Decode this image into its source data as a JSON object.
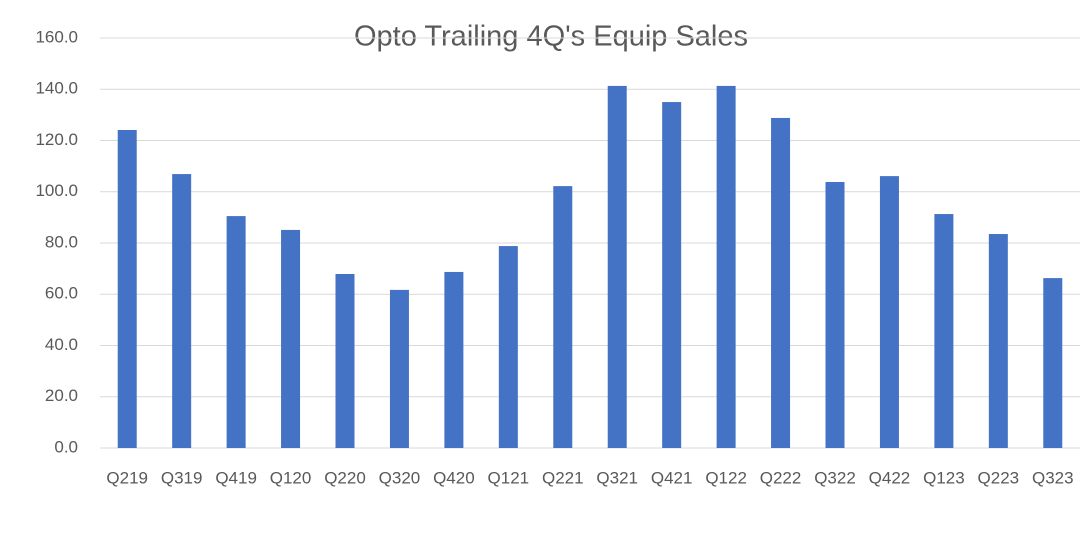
{
  "chart_data": {
    "type": "bar",
    "title": "Opto Trailing 4Q's Equip Sales",
    "categories": [
      "Q219",
      "Q319",
      "Q419",
      "Q120",
      "Q220",
      "Q320",
      "Q420",
      "Q121",
      "Q221",
      "Q321",
      "Q421",
      "Q122",
      "Q222",
      "Q322",
      "Q422",
      "Q123",
      "Q223",
      "Q323"
    ],
    "values": [
      124.1,
      106.9,
      90.5,
      85.1,
      67.9,
      61.7,
      68.7,
      78.8,
      102.2,
      141.3,
      135.0,
      141.3,
      128.8,
      103.8,
      106.1,
      91.3,
      83.5,
      66.3
    ],
    "color": "#4472c4",
    "ylim": [
      0,
      160
    ],
    "yticks": [
      {
        "value": 0,
        "label": "0.0"
      },
      {
        "value": 20,
        "label": "20.0"
      },
      {
        "value": 40,
        "label": "40.0"
      },
      {
        "value": 60,
        "label": "60.0"
      },
      {
        "value": 80,
        "label": "80.0"
      },
      {
        "value": 100,
        "label": "100.0"
      },
      {
        "value": 120,
        "label": "120.0"
      },
      {
        "value": 140,
        "label": "140.0"
      },
      {
        "value": 160,
        "label": "160.0"
      }
    ],
    "grid": true
  }
}
